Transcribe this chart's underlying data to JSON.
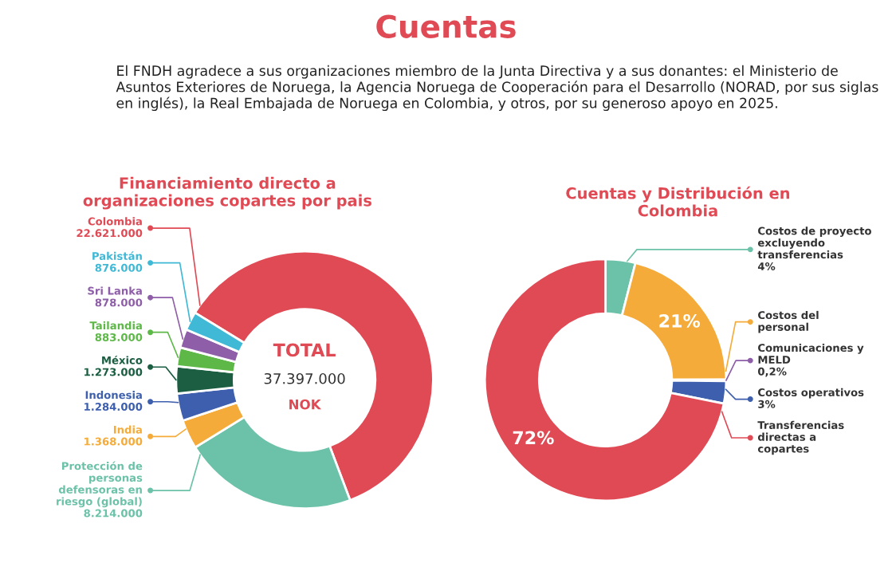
{
  "chart_data": [
    {
      "type": "donut",
      "title": "Financiamiento directo a organizaciones copartes por pais",
      "annotations": [
        "Cuentas",
        "El FNDH agradece a sus organizaciones miembro de la Junta Directiva y a sus donantes: el Ministerio de Asuntos Exteriores de Noruega, la Agencia Noruega de Cooperación para el Desarrollo (NORAD, por sus siglas en inglés), la Real Embajada de Noruega en Colombia, y otros, por su generoso apoyo en 2025.",
        "TOTAL",
        "37.397.000",
        "NOK"
      ],
      "categories": [
        "Colombia",
        "Protección de personas defensoras en riesgo (global)",
        "India",
        "Indonesia",
        "México",
        "Tailandia",
        "Sri Lanka",
        "Pakistán"
      ],
      "values": [
        22621000,
        8214000,
        1368000,
        1284000,
        1273000,
        883000,
        878000,
        876000
      ],
      "value_labels": [
        "22.621.000",
        "8.214.000",
        "1.368.000",
        "1.284.000",
        "1.273.000",
        "883.000",
        "878.000",
        "876.000"
      ],
      "colors": [
        "#e04a55",
        "#6cc2a8",
        "#f5ab3a",
        "#3d5fad",
        "#1b5e42",
        "#5db848",
        "#8e5ea8",
        "#3fb9d6"
      ],
      "legend": "left"
    },
    {
      "type": "donut",
      "title": "Cuentas y Distribución en Colombia",
      "categories": [
        "Costos de proyecto excluyendo transferencias",
        "Costos del personal",
        "Comunicaciones y MELD",
        "Costos operativos",
        "Transferencias directas a copartes"
      ],
      "values": [
        4,
        21,
        0.2,
        3,
        72
      ],
      "value_labels": [
        "4%",
        "21%",
        "0,2%",
        "3%",
        "72%"
      ],
      "colors": [
        "#6cc2a8",
        "#f5ab3a",
        "#8e5ea8",
        "#3d5fad",
        "#e04a55"
      ],
      "legend": "right"
    }
  ]
}
